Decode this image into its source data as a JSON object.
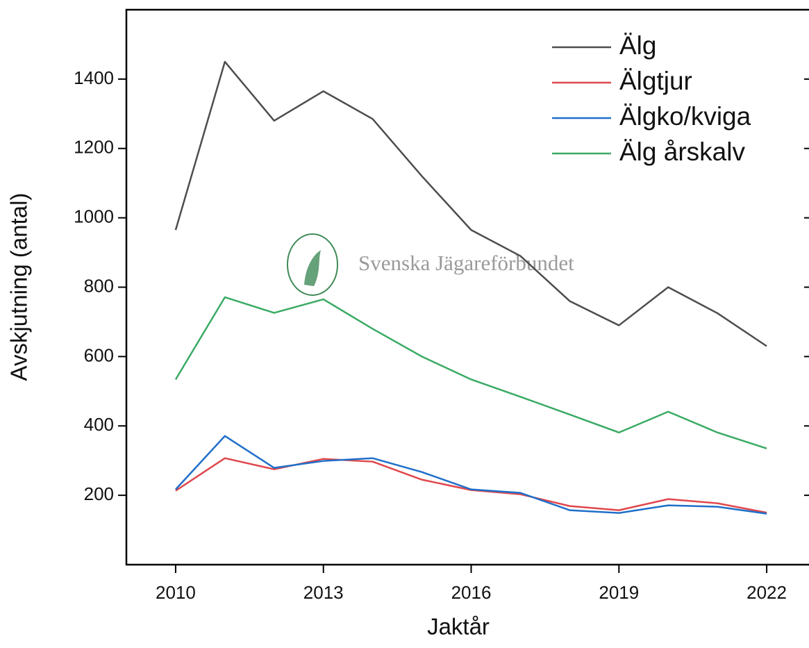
{
  "chart_data": {
    "type": "line",
    "watermark": "Svenska Jägareförbundet",
    "x_label": "Jaktår",
    "y_label": "Avskjutning (antal)",
    "x": [
      2010,
      2011,
      2012,
      2013,
      2014,
      2015,
      2016,
      2017,
      2018,
      2019,
      2020,
      2021,
      2022
    ],
    "series": [
      {
        "name": "Älg",
        "color": "#4d4d4d",
        "values": [
          965,
          1450,
          1280,
          1365,
          1285,
          1120,
          965,
          890,
          760,
          690,
          800,
          725,
          630
        ]
      },
      {
        "name": "Älgtjur",
        "color": "#e0474c",
        "values": [
          213,
          307,
          275,
          305,
          297,
          245,
          215,
          203,
          169,
          157,
          189,
          177,
          150
        ]
      },
      {
        "name": "Älgko/kviga",
        "color": "#1f6fc9",
        "values": [
          217,
          371,
          279,
          299,
          307,
          267,
          217,
          207,
          157,
          149,
          171,
          167,
          147
        ]
      },
      {
        "name": "Älg årskalv",
        "color": "#3aaa64",
        "values": [
          534,
          771,
          726,
          765,
          680,
          600,
          534,
          484,
          433,
          381,
          441,
          381,
          335
        ]
      }
    ],
    "xlim": [
      2009,
      2023
    ],
    "xticks": [
      2010,
      2013,
      2016,
      2019,
      2022
    ],
    "ylim": [
      0,
      1600
    ],
    "yticks": [
      200,
      400,
      600,
      800,
      1000,
      1200,
      1400
    ],
    "legend": "upper right"
  }
}
